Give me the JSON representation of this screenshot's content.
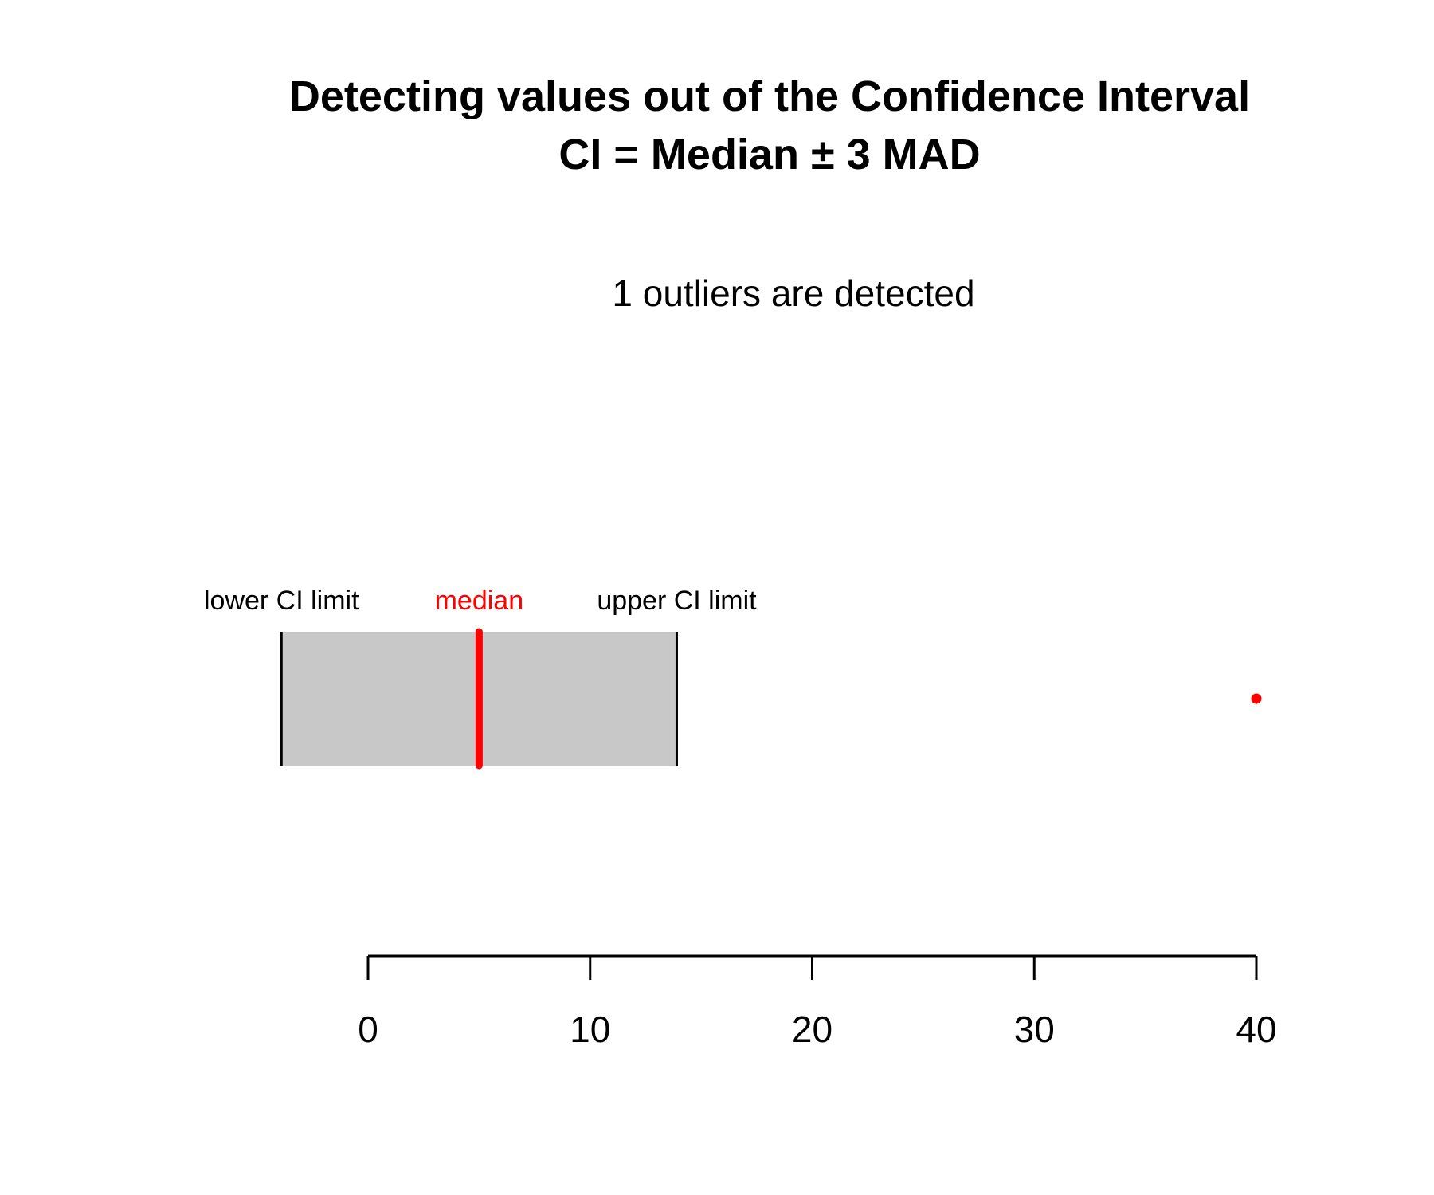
{
  "chart_data": {
    "type": "scatter",
    "title_line1": "Detecting values out of the Confidence Interval",
    "title_line2": "CI = Median ± 3  MAD",
    "subtitle": "1 outliers are detected",
    "labels": {
      "lower": "lower CI limit",
      "median": "median",
      "upper": "upper CI limit"
    },
    "lower_ci_limit": -3.9,
    "median": 5,
    "upper_ci_limit": 13.9,
    "outliers": [
      40
    ],
    "xlim": [
      -3.9,
      40
    ],
    "x_ticks": [
      0,
      10,
      20,
      30,
      40
    ],
    "x_tick_labels": [
      "0",
      "10",
      "20",
      "30",
      "40"
    ],
    "colors": {
      "band": "#c8c8c8",
      "median": "#ff0000",
      "outlier": "#ff0000",
      "limit_lines": "#000000",
      "axis": "#000000"
    }
  }
}
